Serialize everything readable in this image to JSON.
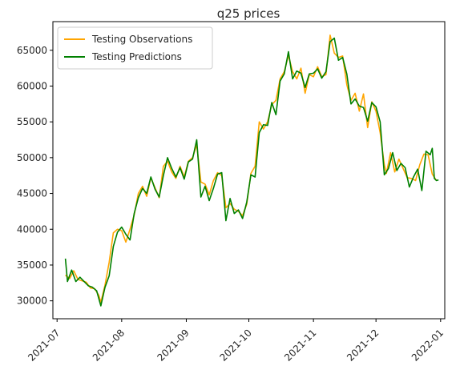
{
  "chart_data": {
    "type": "line",
    "title": "q25 prices",
    "xlabel": "",
    "ylabel": "",
    "x_axis_type": "date",
    "xlim": [
      "2021-06-29",
      "2022-01-03"
    ],
    "ylim": [
      27500,
      69000
    ],
    "x_ticks": [
      "2021-07-01",
      "2021-08-01",
      "2021-09-01",
      "2021-10-01",
      "2021-11-01",
      "2021-12-01",
      "2022-01-01"
    ],
    "x_tick_labels": [
      "2021-07",
      "2021-08",
      "2021-09",
      "2021-10",
      "2021-11",
      "2021-12",
      "2022-01"
    ],
    "y_ticks": [
      30000,
      35000,
      40000,
      45000,
      50000,
      55000,
      60000,
      65000
    ],
    "y_tick_labels": [
      "30000",
      "35000",
      "40000",
      "45000",
      "50000",
      "55000",
      "60000",
      "65000"
    ],
    "grid": false,
    "legend_position": "upper-left",
    "series": [
      {
        "name": "Testing Observations",
        "color": "#ffa500",
        "points": [
          [
            "2021-07-05",
            33600
          ],
          [
            "2021-07-07",
            33100
          ],
          [
            "2021-07-09",
            34200
          ],
          [
            "2021-07-11",
            33000
          ],
          [
            "2021-07-13",
            32800
          ],
          [
            "2021-07-15",
            32600
          ],
          [
            "2021-07-17",
            31800
          ],
          [
            "2021-07-19",
            31700
          ],
          [
            "2021-07-21",
            30800
          ],
          [
            "2021-07-22",
            29800
          ],
          [
            "2021-07-24",
            32200
          ],
          [
            "2021-07-26",
            35400
          ],
          [
            "2021-07-28",
            39500
          ],
          [
            "2021-07-30",
            40000
          ],
          [
            "2021-08-01",
            39800
          ],
          [
            "2021-08-03",
            38200
          ],
          [
            "2021-08-05",
            40000
          ],
          [
            "2021-08-07",
            42000
          ],
          [
            "2021-08-09",
            45000
          ],
          [
            "2021-08-11",
            46000
          ],
          [
            "2021-08-13",
            44600
          ],
          [
            "2021-08-15",
            47200
          ],
          [
            "2021-08-17",
            45800
          ],
          [
            "2021-08-19",
            44400
          ],
          [
            "2021-08-21",
            48800
          ],
          [
            "2021-08-23",
            49500
          ],
          [
            "2021-08-25",
            48000
          ],
          [
            "2021-08-27",
            47100
          ],
          [
            "2021-08-29",
            48800
          ],
          [
            "2021-08-31",
            47300
          ],
          [
            "2021-09-02",
            49500
          ],
          [
            "2021-09-04",
            50000
          ],
          [
            "2021-09-06",
            51800
          ],
          [
            "2021-09-08",
            46600
          ],
          [
            "2021-09-10",
            46300
          ],
          [
            "2021-09-12",
            44800
          ],
          [
            "2021-09-14",
            46800
          ],
          [
            "2021-09-16",
            47900
          ],
          [
            "2021-09-18",
            47500
          ],
          [
            "2021-09-20",
            43000
          ],
          [
            "2021-09-22",
            43600
          ],
          [
            "2021-09-24",
            42800
          ],
          [
            "2021-09-26",
            42500
          ],
          [
            "2021-09-28",
            41900
          ],
          [
            "2021-09-30",
            43500
          ],
          [
            "2021-10-02",
            47800
          ],
          [
            "2021-10-04",
            48800
          ],
          [
            "2021-10-06",
            55000
          ],
          [
            "2021-10-08",
            54000
          ],
          [
            "2021-10-10",
            55000
          ],
          [
            "2021-10-12",
            57400
          ],
          [
            "2021-10-14",
            58000
          ],
          [
            "2021-10-16",
            61000
          ],
          [
            "2021-10-18",
            62000
          ],
          [
            "2021-10-20",
            64300
          ],
          [
            "2021-10-22",
            62000
          ],
          [
            "2021-10-24",
            61000
          ],
          [
            "2021-10-26",
            62500
          ],
          [
            "2021-10-28",
            59000
          ],
          [
            "2021-10-30",
            61600
          ],
          [
            "2021-11-01",
            61300
          ],
          [
            "2021-11-03",
            62700
          ],
          [
            "2021-11-05",
            61300
          ],
          [
            "2021-11-07",
            61600
          ],
          [
            "2021-11-09",
            67100
          ],
          [
            "2021-11-11",
            64600
          ],
          [
            "2021-11-13",
            64000
          ],
          [
            "2021-11-15",
            64200
          ],
          [
            "2021-11-17",
            60200
          ],
          [
            "2021-11-19",
            58000
          ],
          [
            "2021-11-21",
            59000
          ],
          [
            "2021-11-23",
            56500
          ],
          [
            "2021-11-25",
            58900
          ],
          [
            "2021-11-27",
            54200
          ],
          [
            "2021-11-29",
            57800
          ],
          [
            "2021-12-01",
            56500
          ],
          [
            "2021-12-03",
            53500
          ],
          [
            "2021-12-05",
            49000
          ],
          [
            "2021-12-06",
            47800
          ],
          [
            "2021-12-08",
            50700
          ],
          [
            "2021-12-10",
            48000
          ],
          [
            "2021-12-12",
            49800
          ],
          [
            "2021-12-14",
            48500
          ],
          [
            "2021-12-16",
            47200
          ],
          [
            "2021-12-18",
            47100
          ],
          [
            "2021-12-20",
            46800
          ],
          [
            "2021-12-22",
            49000
          ],
          [
            "2021-12-24",
            50500
          ],
          [
            "2021-12-26",
            50400
          ],
          [
            "2021-12-28",
            47700
          ],
          [
            "2021-12-30",
            46800
          ]
        ]
      },
      {
        "name": "Testing Predictions",
        "color": "#008000",
        "points": [
          [
            "2021-07-05",
            35900
          ],
          [
            "2021-07-06",
            32700
          ],
          [
            "2021-07-08",
            34300
          ],
          [
            "2021-07-10",
            32700
          ],
          [
            "2021-07-12",
            33300
          ],
          [
            "2021-07-14",
            32700
          ],
          [
            "2021-07-16",
            32100
          ],
          [
            "2021-07-18",
            31900
          ],
          [
            "2021-07-20",
            31400
          ],
          [
            "2021-07-22",
            29300
          ],
          [
            "2021-07-24",
            31900
          ],
          [
            "2021-07-26",
            33500
          ],
          [
            "2021-07-28",
            37600
          ],
          [
            "2021-07-30",
            39600
          ],
          [
            "2021-08-01",
            40300
          ],
          [
            "2021-08-03",
            39300
          ],
          [
            "2021-08-05",
            38500
          ],
          [
            "2021-08-07",
            42200
          ],
          [
            "2021-08-09",
            44400
          ],
          [
            "2021-08-11",
            45700
          ],
          [
            "2021-08-13",
            45000
          ],
          [
            "2021-08-15",
            47300
          ],
          [
            "2021-08-17",
            45600
          ],
          [
            "2021-08-19",
            44500
          ],
          [
            "2021-08-21",
            47500
          ],
          [
            "2021-08-23",
            50000
          ],
          [
            "2021-08-25",
            48500
          ],
          [
            "2021-08-27",
            47300
          ],
          [
            "2021-08-29",
            48600
          ],
          [
            "2021-08-31",
            47000
          ],
          [
            "2021-09-02",
            49400
          ],
          [
            "2021-09-04",
            49800
          ],
          [
            "2021-09-06",
            52500
          ],
          [
            "2021-09-08",
            44500
          ],
          [
            "2021-09-10",
            46000
          ],
          [
            "2021-09-12",
            44000
          ],
          [
            "2021-09-14",
            45700
          ],
          [
            "2021-09-16",
            47700
          ],
          [
            "2021-09-18",
            47900
          ],
          [
            "2021-09-20",
            41200
          ],
          [
            "2021-09-22",
            44300
          ],
          [
            "2021-09-24",
            42200
          ],
          [
            "2021-09-26",
            42700
          ],
          [
            "2021-09-28",
            41500
          ],
          [
            "2021-09-30",
            43800
          ],
          [
            "2021-10-02",
            47600
          ],
          [
            "2021-10-04",
            47300
          ],
          [
            "2021-10-06",
            53500
          ],
          [
            "2021-10-08",
            54600
          ],
          [
            "2021-10-10",
            54500
          ],
          [
            "2021-10-12",
            57700
          ],
          [
            "2021-10-14",
            56000
          ],
          [
            "2021-10-16",
            60700
          ],
          [
            "2021-10-18",
            61700
          ],
          [
            "2021-10-20",
            64800
          ],
          [
            "2021-10-22",
            61000
          ],
          [
            "2021-10-24",
            62100
          ],
          [
            "2021-10-26",
            61800
          ],
          [
            "2021-10-28",
            59800
          ],
          [
            "2021-10-30",
            61700
          ],
          [
            "2021-11-01",
            61800
          ],
          [
            "2021-11-03",
            62400
          ],
          [
            "2021-11-05",
            61100
          ],
          [
            "2021-11-07",
            62000
          ],
          [
            "2021-11-09",
            66200
          ],
          [
            "2021-11-11",
            66700
          ],
          [
            "2021-11-13",
            63600
          ],
          [
            "2021-11-15",
            64000
          ],
          [
            "2021-11-17",
            61700
          ],
          [
            "2021-11-19",
            57500
          ],
          [
            "2021-11-21",
            58200
          ],
          [
            "2021-11-23",
            57200
          ],
          [
            "2021-11-25",
            57000
          ],
          [
            "2021-11-27",
            55100
          ],
          [
            "2021-11-29",
            57700
          ],
          [
            "2021-12-01",
            57100
          ],
          [
            "2021-12-03",
            55000
          ],
          [
            "2021-12-05",
            47600
          ],
          [
            "2021-12-07",
            48500
          ],
          [
            "2021-12-09",
            50700
          ],
          [
            "2021-12-11",
            48200
          ],
          [
            "2021-12-13",
            49200
          ],
          [
            "2021-12-15",
            48600
          ],
          [
            "2021-12-17",
            45900
          ],
          [
            "2021-12-19",
            47300
          ],
          [
            "2021-12-21",
            48400
          ],
          [
            "2021-12-23",
            45400
          ],
          [
            "2021-12-25",
            50900
          ],
          [
            "2021-12-27",
            50400
          ],
          [
            "2021-12-28",
            51300
          ],
          [
            "2021-12-29",
            47100
          ],
          [
            "2021-12-30",
            46800
          ],
          [
            "2021-12-31",
            46900
          ]
        ]
      }
    ]
  }
}
